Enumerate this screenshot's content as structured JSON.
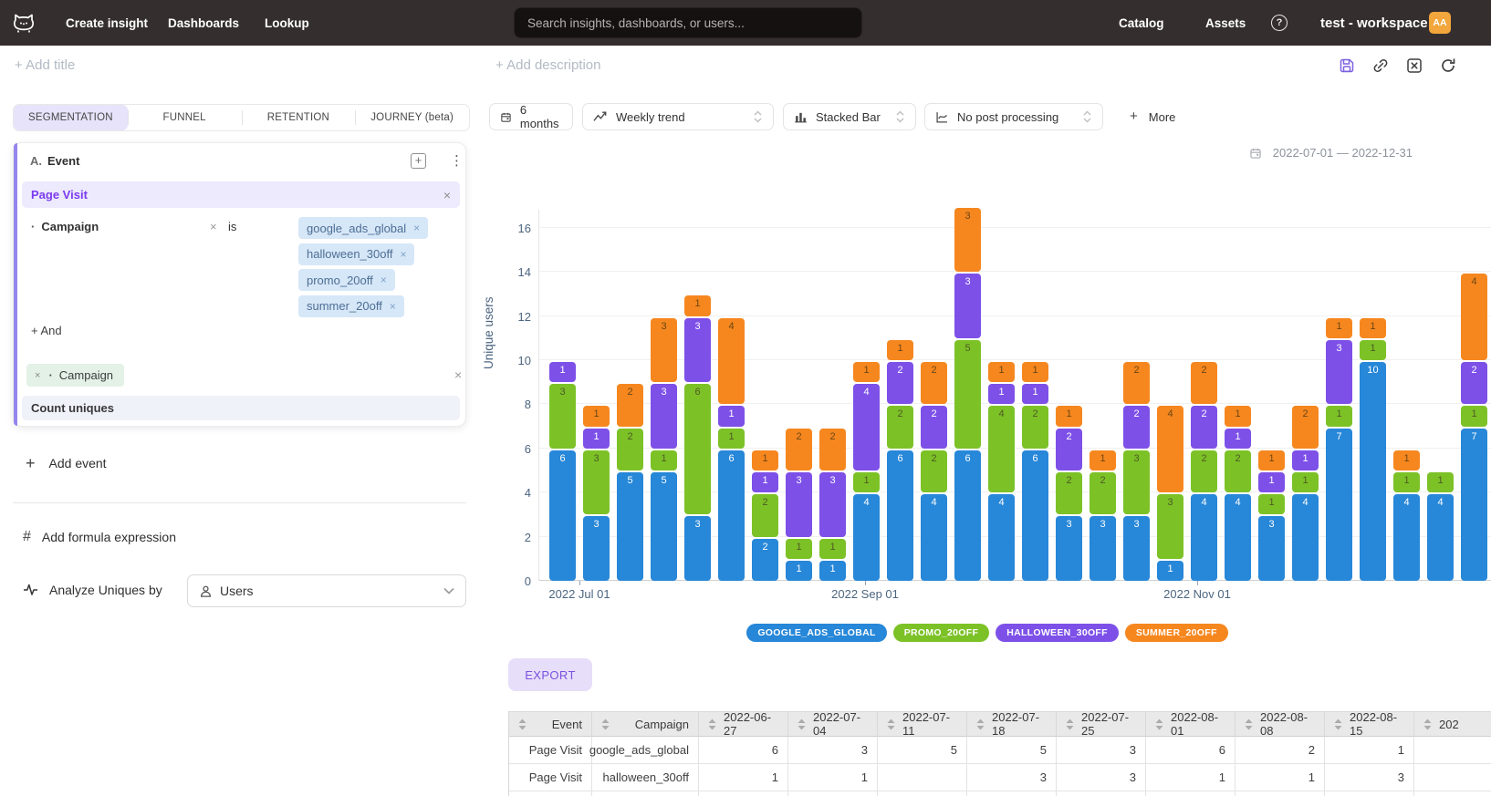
{
  "navbar": {
    "items": [
      "Create insight",
      "Dashboards",
      "Lookup"
    ],
    "search_placeholder": "Search insights, dashboards, or users...",
    "right_items": [
      "Catalog",
      "Assets"
    ],
    "help": "?",
    "workspace": "test - workspace",
    "avatar": "AA"
  },
  "subheader": {
    "add_title": "+ Add title",
    "add_description": "+ Add description"
  },
  "icons": {
    "plus": "+",
    "kebab": "⋮",
    "close": "×",
    "bullet": "·",
    "hash": "#",
    "boxed_plus": "+"
  },
  "left_panel": {
    "tabs": [
      "SEGMENTATION",
      "FUNNEL",
      "RETENTION",
      "JOURNEY (beta)"
    ],
    "active_tab_index": 0,
    "event_group": {
      "label_prefix": "A.",
      "label": "Event",
      "event_name": "Page Visit",
      "filter_property": "Campaign",
      "filter_operator": "is",
      "filter_values": [
        "google_ads_global",
        "halloween_30off",
        "promo_20off",
        "summer_20off"
      ],
      "and_label": "+ And",
      "breakdown_property": "Campaign",
      "aggregation": "Count uniques"
    },
    "add_event_label": "Add event",
    "add_formula_label": "Add formula expression",
    "analyze_by_label": "Analyze Uniques by",
    "analyze_by_value": "Users"
  },
  "toolbar": {
    "time_window": "6 months",
    "trend": "Weekly trend",
    "chart_type": "Stacked Bar",
    "post_processing": "No post processing",
    "more_label": "More",
    "date_range": "2022-07-01 — 2022-12-31"
  },
  "chart_data": {
    "type": "bar",
    "stacked": true,
    "title": "",
    "xlabel": "",
    "ylabel": "Unique users",
    "ylim": [
      0,
      18
    ],
    "yticks": [
      0,
      2,
      4,
      6,
      8,
      10,
      12,
      14,
      16
    ],
    "grid": true,
    "legend_position": "bottom",
    "x_tick_labels": [
      "2022 Jul 01",
      "2022 Sep 01",
      "2022 Nov 01"
    ],
    "categories": [
      "2022-06-27",
      "2022-07-04",
      "2022-07-11",
      "2022-07-18",
      "2022-07-25",
      "2022-08-01",
      "2022-08-08",
      "2022-08-15",
      "2022-08-22",
      "2022-08-29",
      "2022-09-05",
      "2022-09-12",
      "2022-09-19",
      "2022-09-26",
      "2022-10-03",
      "2022-10-10",
      "2022-10-17",
      "2022-10-24",
      "2022-10-31",
      "2022-11-07",
      "2022-11-14",
      "2022-11-21",
      "2022-11-28",
      "2022-12-05",
      "2022-12-12",
      "2022-12-19",
      "2022-12-26",
      "2023-01-02"
    ],
    "series": [
      {
        "name": "google_ads_global",
        "legend": "GOOGLE_ADS_GLOBAL",
        "color": "#2787d8",
        "label_color": "#ffffff",
        "values": [
          6,
          3,
          5,
          5,
          3,
          6,
          2,
          1,
          1,
          4,
          6,
          4,
          6,
          4,
          6,
          3,
          3,
          3,
          1,
          4,
          4,
          3,
          4,
          7,
          10,
          4,
          4,
          7
        ]
      },
      {
        "name": "promo_20off",
        "legend": "PROMO_20OFF",
        "color": "#7cc227",
        "label_color": "#4e5a23",
        "values": [
          3,
          3,
          2,
          1,
          6,
          1,
          2,
          1,
          1,
          1,
          2,
          2,
          5,
          4,
          2,
          2,
          2,
          3,
          3,
          2,
          2,
          1,
          1,
          1,
          1,
          1,
          1,
          1
        ]
      },
      {
        "name": "halloween_30off",
        "legend": "HALLOWEEN_30OFF",
        "color": "#7d50e8",
        "label_color": "#ffffff",
        "values": [
          1,
          1,
          0,
          3,
          3,
          1,
          1,
          3,
          3,
          4,
          2,
          2,
          3,
          1,
          1,
          2,
          0,
          2,
          0,
          2,
          1,
          1,
          1,
          3,
          0,
          0,
          0,
          2
        ]
      },
      {
        "name": "summer_20off",
        "legend": "SUMMER_20OFF",
        "color": "#f6871f",
        "label_color": "#6b4613",
        "values": [
          0,
          1,
          2,
          3,
          1,
          4,
          1,
          2,
          2,
          1,
          1,
          2,
          3,
          1,
          1,
          1,
          1,
          2,
          4,
          2,
          1,
          1,
          2,
          1,
          1,
          1,
          0,
          4
        ]
      }
    ]
  },
  "export_label": "EXPORT",
  "table": {
    "columns": [
      "Event",
      "Campaign",
      "2022-06-27",
      "2022-07-04",
      "2022-07-11",
      "2022-07-18",
      "2022-07-25",
      "2022-08-01",
      "2022-08-08",
      "2022-08-15",
      "202"
    ],
    "rows": [
      [
        "Page Visit",
        "google_ads_global",
        "6",
        "3",
        "5",
        "5",
        "3",
        "6",
        "2",
        "1",
        ""
      ],
      [
        "Page Visit",
        "halloween_30off",
        "1",
        "1",
        "",
        "3",
        "3",
        "1",
        "1",
        "3",
        ""
      ],
      [
        "",
        "",
        "",
        "",
        "",
        "",
        "",
        "",
        "",
        "",
        ""
      ]
    ]
  }
}
